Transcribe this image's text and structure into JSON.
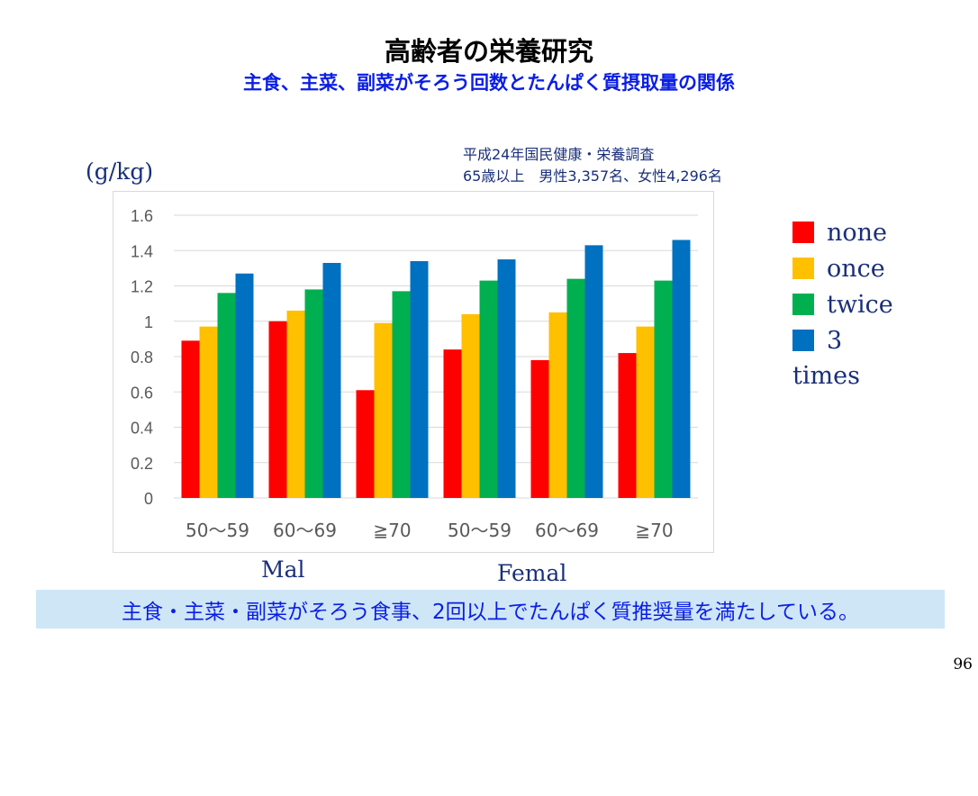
{
  "slide": {
    "title": "高齢者の栄養研究",
    "subtitle": "主食、主菜、副菜がそろう回数とたんぱく質摂取量の関係",
    "source_line1": "平成24年国民健康・栄養調査",
    "source_line2": "65歳以上　男性3,357名、女性4,296名",
    "note": "主食・主菜・副菜がそろう食事、2回以上でたんぱく質推奨量を満たしている。",
    "page_number": "96"
  },
  "chart_data": {
    "type": "bar",
    "ylabel": "(g/kg)",
    "ylim": [
      0,
      1.6
    ],
    "yticks": [
      "0",
      "0.2",
      "0.4",
      "0.6",
      "0.8",
      "1",
      "1.2",
      "1.4",
      "1.6"
    ],
    "grid": true,
    "legend_position": "right",
    "categories": [
      "50〜59",
      "60〜69",
      "≧70",
      "50〜59",
      "60〜69",
      "≧70"
    ],
    "groups": [
      {
        "label": "Mal",
        "categories": [
          0,
          1,
          2
        ]
      },
      {
        "label": "Femal",
        "categories": [
          3,
          4,
          5
        ]
      }
    ],
    "series": [
      {
        "name": "none",
        "color": "#ff0000",
        "values": [
          0.89,
          1.0,
          0.61,
          0.84,
          0.78,
          0.82
        ]
      },
      {
        "name": "once",
        "color": "#ffc000",
        "values": [
          0.97,
          1.06,
          0.99,
          1.04,
          1.05,
          0.97
        ]
      },
      {
        "name": "twice",
        "color": "#00b050",
        "values": [
          1.16,
          1.18,
          1.17,
          1.23,
          1.24,
          1.23
        ]
      },
      {
        "name": "3",
        "name_wrap": "times",
        "color": "#0070c0",
        "values": [
          1.27,
          1.33,
          1.34,
          1.35,
          1.43,
          1.46
        ]
      }
    ]
  }
}
